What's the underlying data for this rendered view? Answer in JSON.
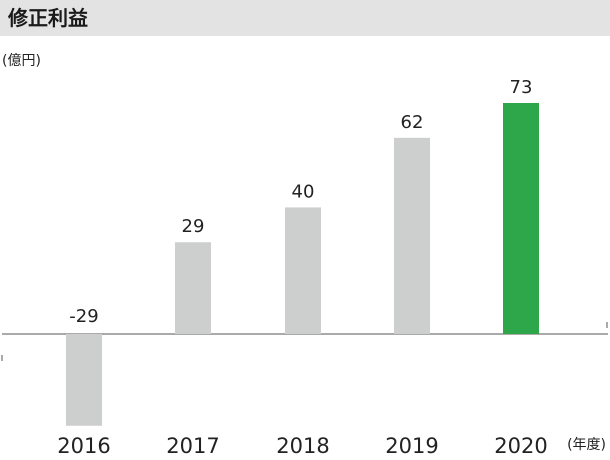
{
  "header": {
    "title": "修正利益"
  },
  "chart_data": {
    "type": "bar",
    "title": "修正利益",
    "ylabel": "(億円)",
    "xlabel": "(年度)",
    "categories": [
      "2016",
      "2017",
      "2018",
      "2019",
      "2020"
    ],
    "values": [
      -29,
      29,
      40,
      62,
      73
    ],
    "data_labels": [
      "-29",
      "29",
      "40",
      "62",
      "73"
    ],
    "ylim": [
      -29,
      73
    ],
    "grid": false,
    "bar_colors": [
      "#cdcfce",
      "#cdcfce",
      "#cdcfce",
      "#cdcfce",
      "#2ea64a"
    ],
    "highlight_color": "#2ea64a",
    "bar_color": "#cdcfce"
  }
}
